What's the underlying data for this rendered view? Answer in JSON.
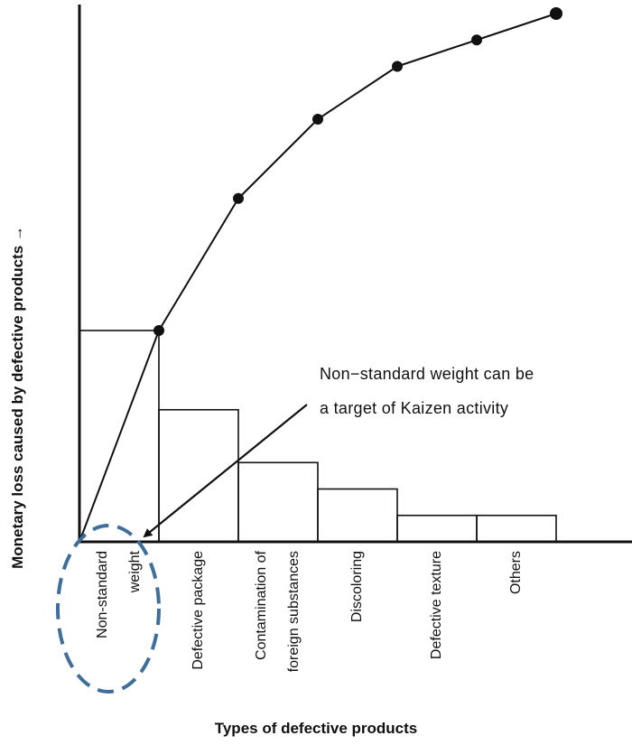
{
  "chart_data": {
    "type": "bar",
    "categories": [
      "Non-standard weight",
      "Defective package",
      "Contamination of foreign substances",
      "Discoloring",
      "Defective texture",
      "Others"
    ],
    "category_lines": [
      [
        "Non-standard",
        "weight"
      ],
      [
        "Defective package"
      ],
      [
        "Contamination of",
        "foreign substances"
      ],
      [
        "Discoloring"
      ],
      [
        "Defective texture"
      ],
      [
        "Others"
      ]
    ],
    "values": [
      40,
      25,
      15,
      10,
      5,
      5
    ],
    "cumulative": [
      40,
      65,
      80,
      90,
      95,
      100
    ],
    "ylim": [
      0,
      100
    ],
    "xlabel": "Types of defective products",
    "ylabel": "Monetary loss caused by defective products",
    "ylabel_arrow": "→",
    "annotation_lines": [
      "Non−standard weight can be",
      "a target of Kaizen activity"
    ],
    "highlighted_category": "Non-standard weight",
    "colors": {
      "highlight_ellipse": "#3e6e99",
      "ink": "#111111"
    }
  }
}
